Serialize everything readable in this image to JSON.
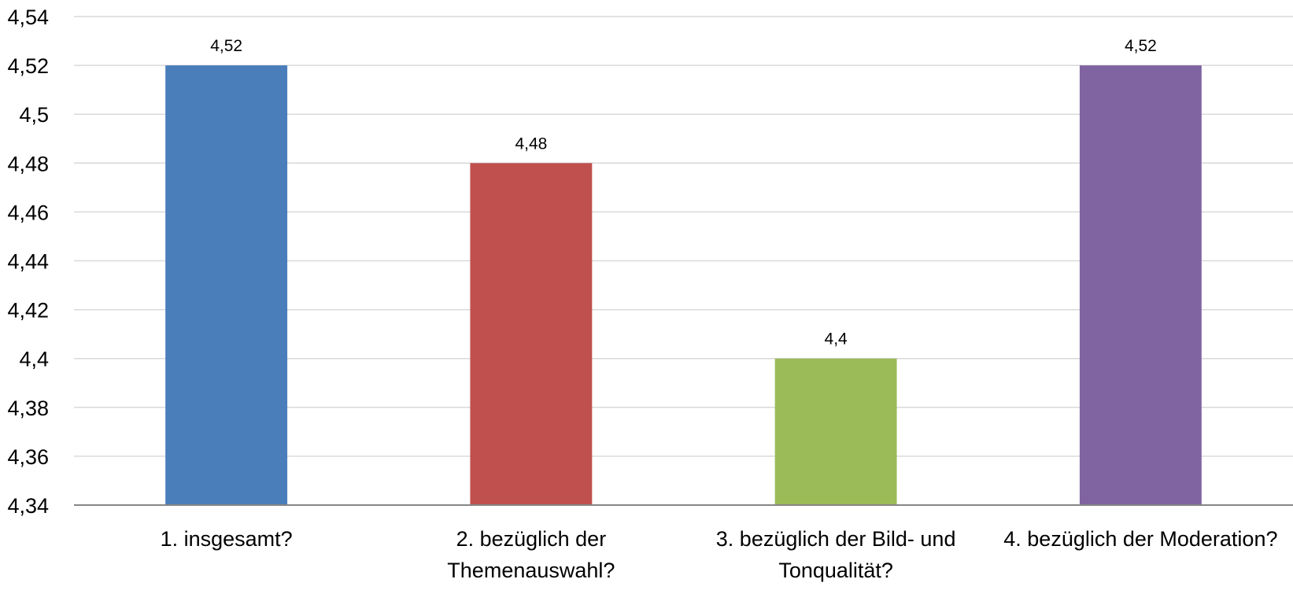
{
  "chart_data": {
    "type": "bar",
    "title": "",
    "xlabel": "",
    "ylabel": "",
    "categories": [
      [
        "1. insgesamt?"
      ],
      [
        "2. bezüglich der",
        "Themenauswahl?"
      ],
      [
        "3. bezüglich der Bild- und",
        "Tonqualität?"
      ],
      [
        "4. bezüglich der Moderation?"
      ]
    ],
    "values": [
      4.52,
      4.48,
      4.4,
      4.52
    ],
    "value_labels": [
      "4,52",
      "4,48",
      "4,4",
      "4,52"
    ],
    "ylim": [
      4.34,
      4.54
    ],
    "y_ticks": [
      4.34,
      4.36,
      4.38,
      4.4,
      4.42,
      4.44,
      4.46,
      4.48,
      4.5,
      4.52,
      4.54
    ],
    "y_tick_labels": [
      "4,34",
      "4,36",
      "4,38",
      "4,4",
      "4,42",
      "4,44",
      "4,46",
      "4,48",
      "4,5",
      "4,52",
      "4,54"
    ],
    "colors": [
      "#4a7eba",
      "#c0504d",
      "#9bbb59",
      "#8064a2"
    ],
    "grid": true,
    "legend": "none"
  }
}
